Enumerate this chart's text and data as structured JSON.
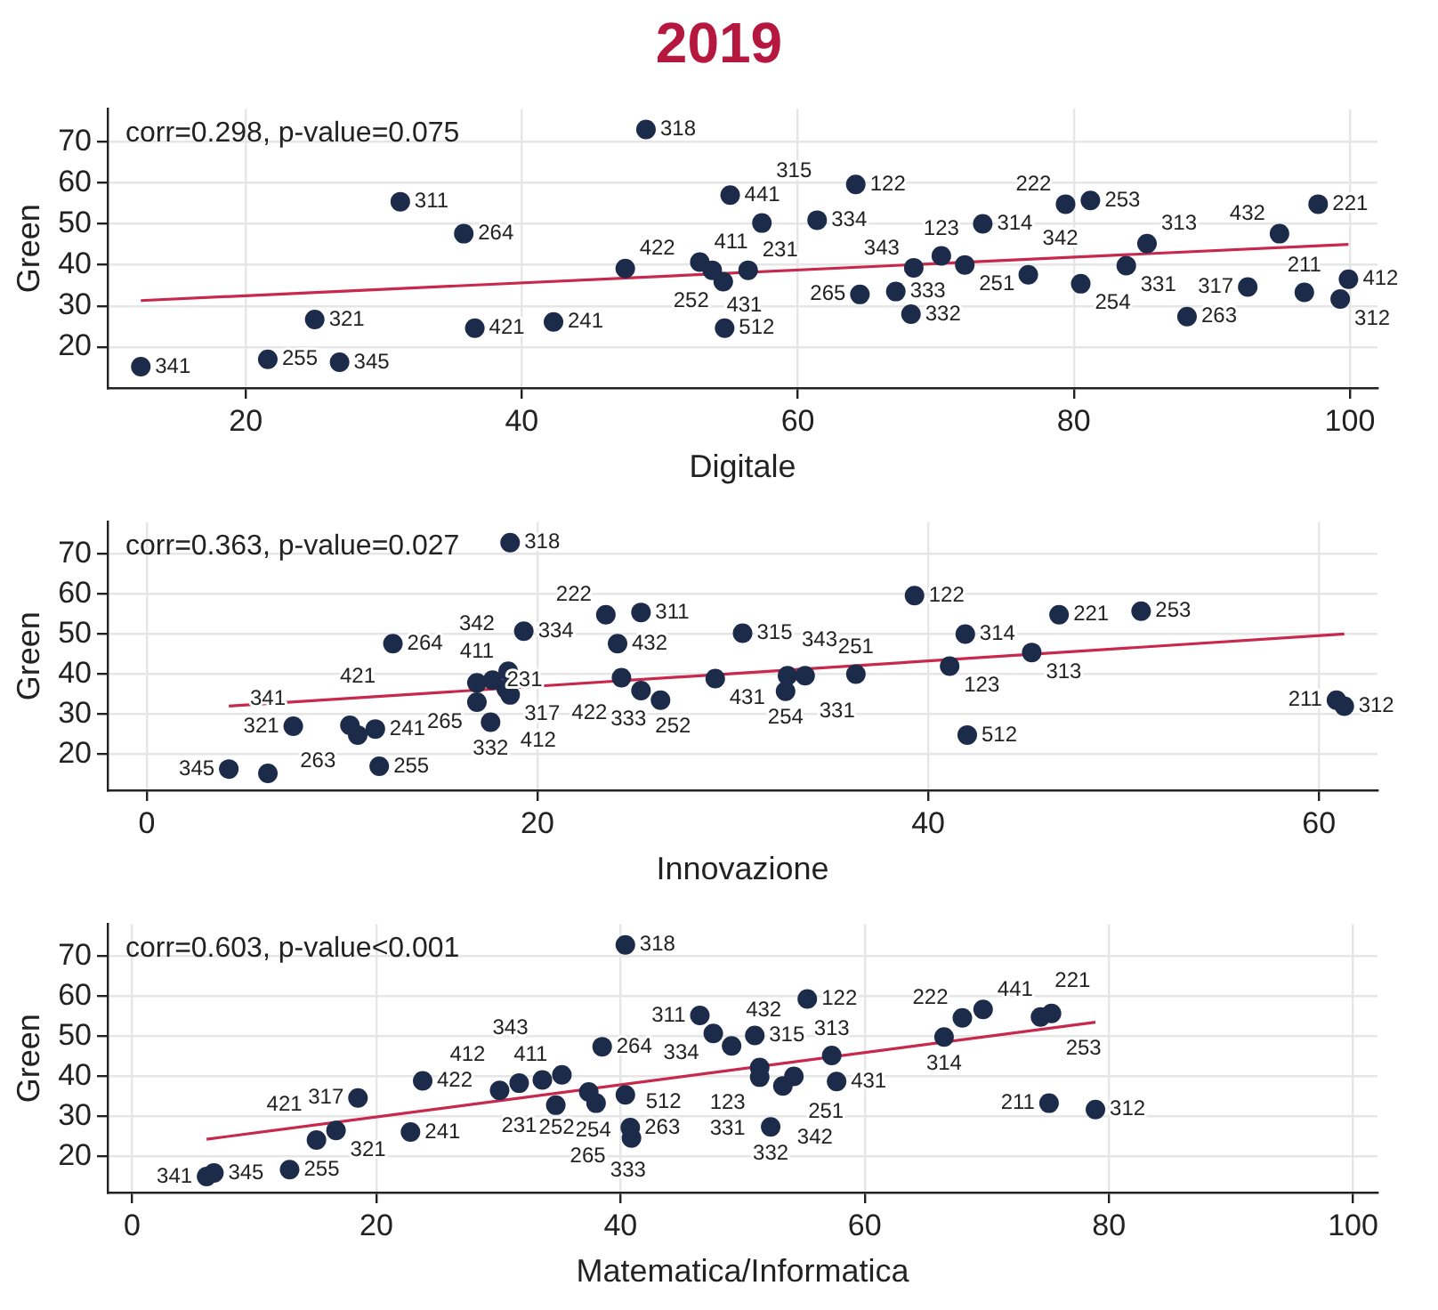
{
  "chart_data": [
    {
      "type": "scatter",
      "title": "2019",
      "xlabel": "Digitale",
      "ylabel": "Green",
      "xlim": [
        10,
        102
      ],
      "ylim": [
        10,
        78
      ],
      "xticks": [
        20,
        40,
        60,
        80,
        100
      ],
      "yticks": [
        20,
        30,
        40,
        50,
        60,
        70
      ],
      "grid": true,
      "series": [
        {
          "color": "#1c2b4a",
          "marker": "circle",
          "x": [
            12.4,
            21.6,
            26.8,
            31.2,
            35.8,
            25.0,
            36.6,
            42.3,
            47.5,
            49.0,
            52.9,
            53.8,
            56.4,
            55.1,
            57.4,
            61.4,
            54.6,
            54.7,
            64.2,
            64.5,
            67.1,
            68.4,
            68.2,
            70.4,
            72.1,
            73.4,
            76.7,
            79.4,
            81.2,
            80.5,
            85.3,
            83.8,
            88.2,
            92.6,
            97.7,
            94.9,
            96.7,
            99.9,
            99.3
          ],
          "values": [
            15.2,
            17.0,
            16.3,
            55.4,
            47.6,
            26.7,
            24.6,
            26.1,
            39.1,
            73.0,
            40.7,
            38.7,
            38.7,
            57.0,
            50.2,
            50.9,
            35.9,
            24.6,
            59.6,
            32.8,
            33.5,
            39.3,
            28.0,
            42.2,
            40.0,
            50.0,
            37.6,
            54.8,
            55.7,
            35.4,
            45.2,
            39.8,
            27.4,
            34.6,
            54.8,
            47.6,
            33.3,
            36.5,
            31.7
          ]
        },
        {
          "type": "line",
          "color": "#c8284c",
          "marker": "none",
          "x": [
            12.4,
            99.9
          ],
          "values": [
            31.3,
            45.0
          ]
        }
      ],
      "annotations": [
        "corr=0.298, p-value=0.075",
        {
          "text": "341",
          "x": 12.4,
          "y": 15.2
        },
        {
          "text": "255",
          "x": 21.6,
          "y": 17.0
        },
        {
          "text": "345",
          "x": 26.8,
          "y": 16.3
        },
        {
          "text": "311",
          "x": 31.2,
          "y": 55.4
        },
        {
          "text": "264",
          "x": 35.8,
          "y": 47.6
        },
        {
          "text": "321",
          "x": 25.0,
          "y": 26.7
        },
        {
          "text": "421",
          "x": 36.6,
          "y": 24.6
        },
        {
          "text": "241",
          "x": 42.3,
          "y": 26.1
        },
        {
          "text": "422",
          "x": 47.5,
          "y": 39.1
        },
        {
          "text": "318",
          "x": 49.0,
          "y": 73.0
        },
        {
          "text": "411",
          "x": 52.9,
          "y": 40.7
        },
        {
          "text": "431",
          "x": 53.8,
          "y": 38.7
        },
        {
          "text": "231",
          "x": 56.4,
          "y": 38.7
        },
        {
          "text": "441",
          "x": 55.1,
          "y": 57.0
        },
        {
          "text": "315",
          "x": 57.4,
          "y": 50.2
        },
        {
          "text": "334",
          "x": 61.4,
          "y": 50.9
        },
        {
          "text": "252",
          "x": 54.6,
          "y": 35.9
        },
        {
          "text": "512",
          "x": 54.7,
          "y": 24.6
        },
        {
          "text": "122",
          "x": 64.2,
          "y": 59.6
        },
        {
          "text": "265",
          "x": 64.5,
          "y": 32.8
        },
        {
          "text": "333",
          "x": 67.1,
          "y": 33.5
        },
        {
          "text": "343",
          "x": 68.4,
          "y": 39.3
        },
        {
          "text": "332",
          "x": 68.2,
          "y": 28.0
        },
        {
          "text": "123",
          "x": 70.4,
          "y": 42.2
        },
        {
          "text": "251",
          "x": 72.1,
          "y": 40.0
        },
        {
          "text": "314",
          "x": 73.4,
          "y": 50.0
        },
        {
          "text": "342",
          "x": 76.7,
          "y": 37.6
        },
        {
          "text": "222",
          "x": 79.4,
          "y": 54.8
        },
        {
          "text": "253",
          "x": 81.2,
          "y": 55.7
        },
        {
          "text": "254",
          "x": 80.5,
          "y": 35.4
        },
        {
          "text": "313",
          "x": 85.3,
          "y": 45.2
        },
        {
          "text": "331",
          "x": 83.8,
          "y": 39.8
        },
        {
          "text": "263",
          "x": 88.2,
          "y": 27.4
        },
        {
          "text": "317",
          "x": 92.6,
          "y": 34.6
        },
        {
          "text": "221",
          "x": 97.7,
          "y": 54.8
        },
        {
          "text": "432",
          "x": 94.9,
          "y": 47.6
        },
        {
          "text": "211",
          "x": 96.7,
          "y": 33.3
        },
        {
          "text": "412",
          "x": 99.9,
          "y": 36.5
        },
        {
          "text": "312",
          "x": 99.3,
          "y": 31.7
        }
      ]
    },
    {
      "type": "scatter",
      "xlabel": "Innovazione",
      "ylabel": "Green",
      "xlim": [
        -2,
        63
      ],
      "ylim": [
        11,
        78
      ],
      "xticks": [
        0,
        20,
        40,
        60
      ],
      "yticks": [
        20,
        30,
        40,
        50,
        60,
        70
      ],
      "grid": true,
      "series": [
        {
          "color": "#1c2b4a",
          "marker": "circle",
          "x": [
            18.6,
            39.3,
            46.7,
            50.9,
            12.6,
            19.3,
            23.5,
            25.3,
            24.1,
            30.5,
            41.9,
            45.3,
            41.1,
            18.5,
            24.3,
            18.6,
            18.4,
            25.3,
            26.3,
            29.1,
            32.8,
            33.7,
            36.3,
            32.7,
            16.9,
            17.6,
            7.5,
            10.4,
            11.7,
            10.8,
            4.2,
            6.2,
            11.9,
            42.0,
            60.9,
            61.3,
            16.9,
            17.7
          ],
          "values": [
            72.8,
            59.6,
            54.8,
            55.7,
            47.6,
            50.7,
            54.8,
            55.4,
            47.6,
            50.2,
            50.0,
            45.4,
            42.0,
            40.7,
            39.1,
            34.8,
            36.3,
            35.9,
            33.5,
            38.9,
            39.6,
            39.6,
            40.0,
            35.7,
            33.0,
            28.0,
            27.0,
            27.2,
            26.3,
            24.8,
            16.3,
            15.2,
            17.0,
            24.8,
            33.5,
            32.0,
            37.8,
            38.5
          ]
        },
        {
          "type": "line",
          "color": "#c8284c",
          "marker": "none",
          "x": [
            4.2,
            61.3
          ],
          "values": [
            32.0,
            50.0
          ]
        }
      ],
      "annotations": [
        "corr=0.363, p-value=0.027",
        {
          "text": "318",
          "x": 18.6,
          "y": 72.8
        },
        {
          "text": "122",
          "x": 39.3,
          "y": 59.6
        },
        {
          "text": "221",
          "x": 46.7,
          "y": 54.8
        },
        {
          "text": "253",
          "x": 50.9,
          "y": 55.7
        },
        {
          "text": "264",
          "x": 12.6,
          "y": 47.6
        },
        {
          "text": "334",
          "x": 19.3,
          "y": 50.7
        },
        {
          "text": "222",
          "x": 23.5,
          "y": 54.8
        },
        {
          "text": "311",
          "x": 25.3,
          "y": 55.4
        },
        {
          "text": "432",
          "x": 24.1,
          "y": 47.6
        },
        {
          "text": "315",
          "x": 30.5,
          "y": 50.2
        },
        {
          "text": "314",
          "x": 41.9,
          "y": 50.0
        },
        {
          "text": "313",
          "x": 45.3,
          "y": 45.4
        },
        {
          "text": "123",
          "x": 41.1,
          "y": 42.0
        },
        {
          "text": "411",
          "x": 18.5,
          "y": 40.7
        },
        {
          "text": "422",
          "x": 24.3,
          "y": 39.1
        },
        {
          "text": "317",
          "x": 18.6,
          "y": 34.8
        },
        {
          "text": "412",
          "x": 18.4,
          "y": 36.3
        },
        {
          "text": "252",
          "x": 25.3,
          "y": 35.9
        },
        {
          "text": "333",
          "x": 26.3,
          "y": 33.5
        },
        {
          "text": "431",
          "x": 29.1,
          "y": 38.9
        },
        {
          "text": "343",
          "x": 32.8,
          "y": 39.6
        },
        {
          "text": "331",
          "x": 33.7,
          "y": 39.6
        },
        {
          "text": "251",
          "x": 36.3,
          "y": 40.0
        },
        {
          "text": "254",
          "x": 32.7,
          "y": 35.7
        },
        {
          "text": "265",
          "x": 16.9,
          "y": 33.0
        },
        {
          "text": "332",
          "x": 17.6,
          "y": 28.0
        },
        {
          "text": "321",
          "x": 7.5,
          "y": 27.0
        },
        {
          "text": "263",
          "x": 10.4,
          "y": 27.2
        },
        {
          "text": "241",
          "x": 11.7,
          "y": 26.3
        },
        {
          "text": "421",
          "x": 10.8,
          "y": 24.8
        },
        {
          "text": "345",
          "x": 4.2,
          "y": 16.3
        },
        {
          "text": "341",
          "x": 6.2,
          "y": 15.2
        },
        {
          "text": "255",
          "x": 11.9,
          "y": 17.0
        },
        {
          "text": "512",
          "x": 42.0,
          "y": 24.8
        },
        {
          "text": "211",
          "x": 60.9,
          "y": 33.5
        },
        {
          "text": "312",
          "x": 61.3,
          "y": 32.0
        },
        {
          "text": "342",
          "x": 16.9,
          "y": 37.8
        },
        {
          "text": "231",
          "x": 17.7,
          "y": 38.5
        }
      ]
    },
    {
      "type": "scatter",
      "xlabel": "Matematica/Informatica",
      "ylabel": "Green",
      "xlim": [
        -2,
        102
      ],
      "ylim": [
        11,
        78
      ],
      "xticks": [
        0,
        20,
        40,
        60,
        80,
        100
      ],
      "yticks": [
        20,
        30,
        40,
        50,
        60,
        70
      ],
      "grid": true,
      "series": [
        {
          "color": "#1c2b4a",
          "marker": "circle",
          "x": [
            40.4,
            55.3,
            46.5,
            69.7,
            68.0,
            74.4,
            75.3,
            66.5,
            47.6,
            51.0,
            49.1,
            38.5,
            57.3,
            51.4,
            51.4,
            54.2,
            53.3,
            57.7,
            35.2,
            23.8,
            33.6,
            31.7,
            30.1,
            18.5,
            37.4,
            40.4,
            34.7,
            38.0,
            40.8,
            40.9,
            52.3,
            75.1,
            78.9,
            16.7,
            22.8,
            15.1,
            12.9,
            6.7,
            6.1
          ],
          "values": [
            72.8,
            59.3,
            55.2,
            56.7,
            54.6,
            54.8,
            55.7,
            49.8,
            50.7,
            50.2,
            47.6,
            47.4,
            45.2,
            42.2,
            39.8,
            40.0,
            37.6,
            38.7,
            40.4,
            38.9,
            39.1,
            38.3,
            36.5,
            34.6,
            36.1,
            35.4,
            32.8,
            33.3,
            27.2,
            24.6,
            27.4,
            33.3,
            31.7,
            26.5,
            26.1,
            24.1,
            16.7,
            15.9,
            15.0
          ]
        },
        {
          "type": "line",
          "color": "#c8284c",
          "marker": "none",
          "x": [
            6.1,
            78.9
          ],
          "values": [
            24.3,
            53.5
          ]
        }
      ],
      "annotations": [
        "corr=0.603, p-value<0.001",
        {
          "text": "318",
          "x": 40.4,
          "y": 72.8
        },
        {
          "text": "122",
          "x": 55.3,
          "y": 59.3
        },
        {
          "text": "311",
          "x": 46.5,
          "y": 55.2
        },
        {
          "text": "441",
          "x": 69.7,
          "y": 56.7
        },
        {
          "text": "222",
          "x": 68.0,
          "y": 54.6
        },
        {
          "text": "221",
          "x": 74.4,
          "y": 54.8
        },
        {
          "text": "253",
          "x": 75.3,
          "y": 55.7
        },
        {
          "text": "314",
          "x": 66.5,
          "y": 49.8
        },
        {
          "text": "334",
          "x": 47.6,
          "y": 50.7
        },
        {
          "text": "315",
          "x": 51.0,
          "y": 50.2
        },
        {
          "text": "432",
          "x": 49.1,
          "y": 47.6
        },
        {
          "text": "264",
          "x": 38.5,
          "y": 47.4
        },
        {
          "text": "313",
          "x": 57.3,
          "y": 45.2
        },
        {
          "text": "123",
          "x": 51.4,
          "y": 42.2
        },
        {
          "text": "331",
          "x": 51.4,
          "y": 39.8
        },
        {
          "text": "251",
          "x": 54.2,
          "y": 40.0
        },
        {
          "text": "342",
          "x": 53.3,
          "y": 37.6
        },
        {
          "text": "431",
          "x": 57.7,
          "y": 38.7
        },
        {
          "text": "411",
          "x": 35.2,
          "y": 40.4
        },
        {
          "text": "422",
          "x": 23.8,
          "y": 38.9
        },
        {
          "text": "343",
          "x": 33.6,
          "y": 39.1
        },
        {
          "text": "231",
          "x": 31.7,
          "y": 38.3
        },
        {
          "text": "412",
          "x": 30.1,
          "y": 36.5
        },
        {
          "text": "317",
          "x": 18.5,
          "y": 34.6
        },
        {
          "text": "252",
          "x": 37.4,
          "y": 36.1
        },
        {
          "text": "254",
          "x": 40.4,
          "y": 35.4
        },
        {
          "text": "265",
          "x": 34.7,
          "y": 32.8
        },
        {
          "text": "333",
          "x": 38.0,
          "y": 33.3
        },
        {
          "text": "263",
          "x": 40.8,
          "y": 27.2
        },
        {
          "text": "512",
          "x": 40.9,
          "y": 24.6
        },
        {
          "text": "332",
          "x": 52.3,
          "y": 27.4
        },
        {
          "text": "211",
          "x": 75.1,
          "y": 33.3
        },
        {
          "text": "312",
          "x": 78.9,
          "y": 31.7
        },
        {
          "text": "321",
          "x": 16.7,
          "y": 26.5
        },
        {
          "text": "241",
          "x": 22.8,
          "y": 26.1
        },
        {
          "text": "421",
          "x": 15.1,
          "y": 24.1
        },
        {
          "text": "255",
          "x": 12.9,
          "y": 16.7
        },
        {
          "text": "345",
          "x": 6.7,
          "y": 15.9
        },
        {
          "text": "341",
          "x": 6.1,
          "y": 15.0
        }
      ]
    }
  ]
}
